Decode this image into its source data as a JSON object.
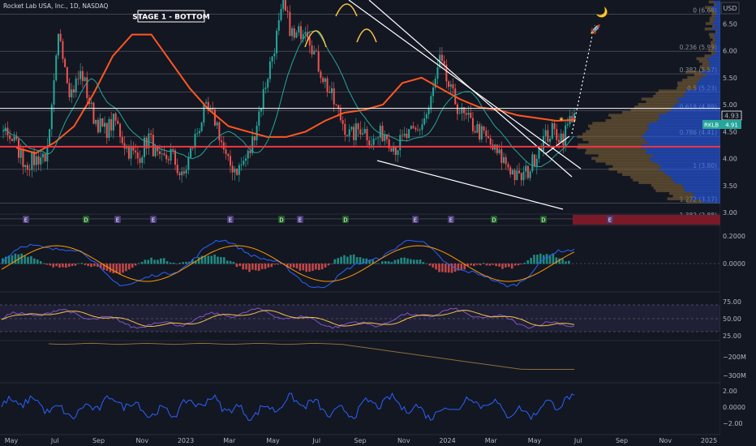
{
  "header": {
    "symbol_title": "Rocket Lab USA, Inc., 1D, NASDAQ",
    "currency": "USD"
  },
  "annotation": {
    "label": "STAGE 1 - BOTTOM"
  },
  "emoji": {
    "moon": "🌙",
    "rocket": "🚀"
  },
  "price_axis": {
    "ticks": [
      "6.50",
      "6.00",
      "5.50",
      "5.00",
      "4.50",
      "4.00",
      "3.50",
      "3.00"
    ]
  },
  "price_tags": {
    "last": "4.93",
    "ticker": "RKLB",
    "ticker_value": "4.91"
  },
  "fib_levels": [
    {
      "label": "0 (6.68)",
      "price": 6.68
    },
    {
      "label": "0.236 (5.99)",
      "price": 5.99
    },
    {
      "label": "0.382 (5.57)",
      "price": 5.57
    },
    {
      "label": "0.5 (5.23)",
      "price": 5.23
    },
    {
      "label": "0.618 (4.89)",
      "price": 4.89
    },
    {
      "label": "0.786 (4.41)",
      "price": 4.41
    },
    {
      "label": "1 (3.80)",
      "price": 3.8
    },
    {
      "label": "1.272 (3.17)",
      "price": 3.17
    },
    {
      "label": "1.382 (2.88)",
      "price": 2.88
    }
  ],
  "event_markers": [
    "E",
    "D",
    "E",
    "E",
    "E",
    "D",
    "E",
    "D",
    "E",
    "E",
    "D",
    "D",
    "E"
  ],
  "time_axis": [
    "May",
    "Jul",
    "Sep",
    "Nov",
    "2023",
    "Mar",
    "May",
    "Jul",
    "Sep",
    "Nov",
    "2024",
    "Mar",
    "May",
    "Jul",
    "Sep",
    "Nov",
    "2025"
  ],
  "macd_axis": [
    "0.2000",
    "0.0000"
  ],
  "rsi_axis": [
    "75.00",
    "50.00",
    "25.00"
  ],
  "obv_axis": [
    "−200M",
    "−300M"
  ],
  "osc_axis": [
    "2.00",
    "0.0000",
    "−2.00"
  ],
  "colors": {
    "background": "#131722",
    "up": "#26a69a",
    "down": "#ef5350",
    "ma_slow": "#ff5722",
    "ma_fast": "#26a69a",
    "macd": "#2962ff",
    "signal": "#ff9800",
    "rsi": "#7e57c2",
    "obv": "#8d6e3a",
    "osc": "#2962ff",
    "support": "#f23645",
    "volume_profile_up": "#2962ff",
    "volume_profile_down": "#8d6e3a"
  },
  "chart_data": {
    "type": "candlestick",
    "x_start": "2022-05",
    "x_end": "2024-06",
    "ylim": [
      3.0,
      6.85
    ],
    "support_level": 4.22,
    "resistance_level": 4.93,
    "ma_slow_values": [
      4.2,
      4.1,
      4.3,
      4.6,
      5.2,
      5.9,
      6.3,
      6.3,
      5.8,
      5.3,
      4.9,
      4.6,
      4.5,
      4.4,
      4.4,
      4.5,
      4.7,
      4.85,
      4.9,
      5.0,
      5.4,
      5.5,
      5.3,
      5.1,
      4.95,
      4.9,
      4.8,
      4.75,
      4.7,
      4.72
    ],
    "close_values": [
      4.6,
      4.3,
      3.9,
      4.0,
      4.1,
      6.4,
      5.2,
      5.6,
      4.8,
      4.5,
      4.7,
      4.2,
      4.0,
      4.4,
      3.9,
      4.1,
      3.6,
      4.3,
      4.9,
      4.7,
      3.9,
      3.8,
      4.1,
      5.0,
      5.9,
      6.8,
      6.2,
      6.5,
      5.8,
      5.3,
      4.8,
      4.4,
      4.6,
      4.3,
      4.5,
      4.2,
      4.4,
      4.5,
      4.9,
      5.8,
      5.2,
      4.8,
      4.6,
      4.4,
      4.1,
      3.9,
      3.6,
      3.8,
      4.3,
      4.5,
      4.4,
      4.9
    ]
  }
}
